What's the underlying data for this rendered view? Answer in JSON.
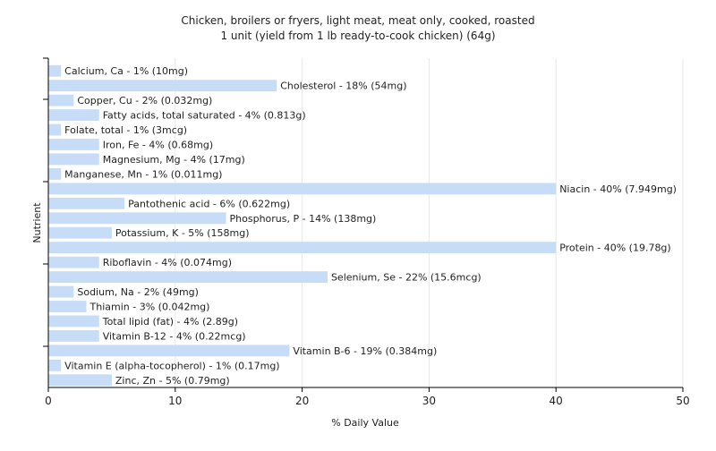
{
  "chart_data": {
    "type": "bar",
    "orientation": "horizontal",
    "title": "Chicken, broilers or fryers, light meat, meat only, cooked, roasted",
    "subtitle": "1 unit (yield from 1 lb ready-to-cook chicken) (64g)",
    "xlabel": "% Daily Value",
    "ylabel": "Nutrient",
    "xlim": [
      0,
      50
    ],
    "x_ticks": [
      0,
      10,
      20,
      30,
      40,
      50
    ],
    "grid": "vertical",
    "colors": {
      "bar": "#c6dcf7",
      "grid": "#e8e8e8",
      "axis": "#000000",
      "text": "#222222"
    },
    "categories": [
      "Calcium, Ca",
      "Cholesterol",
      "Copper, Cu",
      "Fatty acids, total saturated",
      "Folate, total",
      "Iron, Fe",
      "Magnesium, Mg",
      "Manganese, Mn",
      "Niacin",
      "Pantothenic acid",
      "Phosphorus, P",
      "Potassium, K",
      "Protein",
      "Riboflavin",
      "Selenium, Se",
      "Sodium, Na",
      "Thiamin",
      "Total lipid (fat)",
      "Vitamin B-12",
      "Vitamin B-6",
      "Vitamin E (alpha-tocopherol)",
      "Zinc, Zn"
    ],
    "values": [
      1,
      18,
      2,
      4,
      1,
      4,
      4,
      1,
      40,
      6,
      14,
      5,
      40,
      4,
      22,
      2,
      3,
      4,
      4,
      19,
      1,
      5
    ],
    "labels": [
      "Calcium, Ca - 1% (10mg)",
      "Cholesterol - 18% (54mg)",
      "Copper, Cu - 2% (0.032mg)",
      "Fatty acids, total saturated - 4% (0.813g)",
      "Folate, total - 1% (3mcg)",
      "Iron, Fe - 4% (0.68mg)",
      "Magnesium, Mg - 4% (17mg)",
      "Manganese, Mn - 1% (0.011mg)",
      "Niacin - 40% (7.949mg)",
      "Pantothenic acid - 6% (0.622mg)",
      "Phosphorus, P - 14% (138mg)",
      "Potassium, K - 5% (158mg)",
      "Protein - 40% (19.78g)",
      "Riboflavin - 4% (0.074mg)",
      "Selenium, Se - 22% (15.6mcg)",
      "Sodium, Na - 2% (49mg)",
      "Thiamin - 3% (0.042mg)",
      "Total lipid (fat) - 4% (2.89g)",
      "Vitamin B-12 - 4% (0.22mcg)",
      "Vitamin B-6 - 19% (0.384mg)",
      "Vitamin E (alpha-tocopherol) - 1% (0.17mg)",
      "Zinc, Zn - 5% (0.79mg)"
    ]
  }
}
